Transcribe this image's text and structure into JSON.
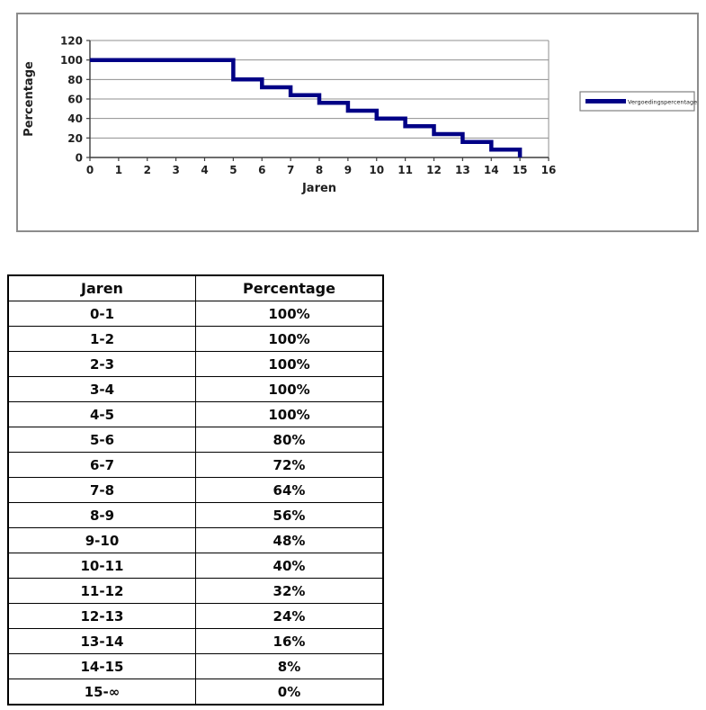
{
  "chart_data": {
    "type": "line",
    "step": true,
    "title": "",
    "xlabel": "Jaren",
    "ylabel": "Percentage",
    "xlim": [
      0,
      16
    ],
    "ylim": [
      0,
      120
    ],
    "x_ticks": [
      0,
      1,
      2,
      3,
      4,
      5,
      6,
      7,
      8,
      9,
      10,
      11,
      12,
      13,
      14,
      15,
      16
    ],
    "y_ticks": [
      0,
      20,
      40,
      60,
      80,
      100,
      120
    ],
    "grid": "horizontal",
    "legend_position": "right",
    "series": [
      {
        "name": "Vergoedingspercentage",
        "color": "#000086",
        "steps": [
          {
            "from": 0,
            "to": 5,
            "value": 100
          },
          {
            "from": 5,
            "to": 6,
            "value": 80
          },
          {
            "from": 6,
            "to": 7,
            "value": 72
          },
          {
            "from": 7,
            "to": 8,
            "value": 64
          },
          {
            "from": 8,
            "to": 9,
            "value": 56
          },
          {
            "from": 9,
            "to": 10,
            "value": 48
          },
          {
            "from": 10,
            "to": 11,
            "value": 40
          },
          {
            "from": 11,
            "to": 12,
            "value": 32
          },
          {
            "from": 12,
            "to": 13,
            "value": 24
          },
          {
            "from": 13,
            "to": 14,
            "value": 16
          },
          {
            "from": 14,
            "to": 15,
            "value": 8
          }
        ],
        "end_drop": {
          "x": 15,
          "value": 0
        }
      }
    ]
  },
  "table": {
    "headers": [
      "Jaren",
      "Percentage"
    ],
    "rows": [
      [
        "0-1",
        "100%"
      ],
      [
        "1-2",
        "100%"
      ],
      [
        "2-3",
        "100%"
      ],
      [
        "3-4",
        "100%"
      ],
      [
        "4-5",
        "100%"
      ],
      [
        "5-6",
        "80%"
      ],
      [
        "6-7",
        "72%"
      ],
      [
        "7-8",
        "64%"
      ],
      [
        "8-9",
        "56%"
      ],
      [
        "9-10",
        "48%"
      ],
      [
        "10-11",
        "40%"
      ],
      [
        "11-12",
        "32%"
      ],
      [
        "12-13",
        "24%"
      ],
      [
        "13-14",
        "16%"
      ],
      [
        "14-15",
        "8%"
      ],
      [
        "15-∞",
        "0%"
      ]
    ]
  },
  "colors": {
    "series_line": "#000086",
    "gridline": "#8f8f8f",
    "axis": "#3d3d3d",
    "tick_label": "#1f1f1f",
    "chart_frame_border": "#8c8c8c",
    "legend_border": "#808080"
  }
}
